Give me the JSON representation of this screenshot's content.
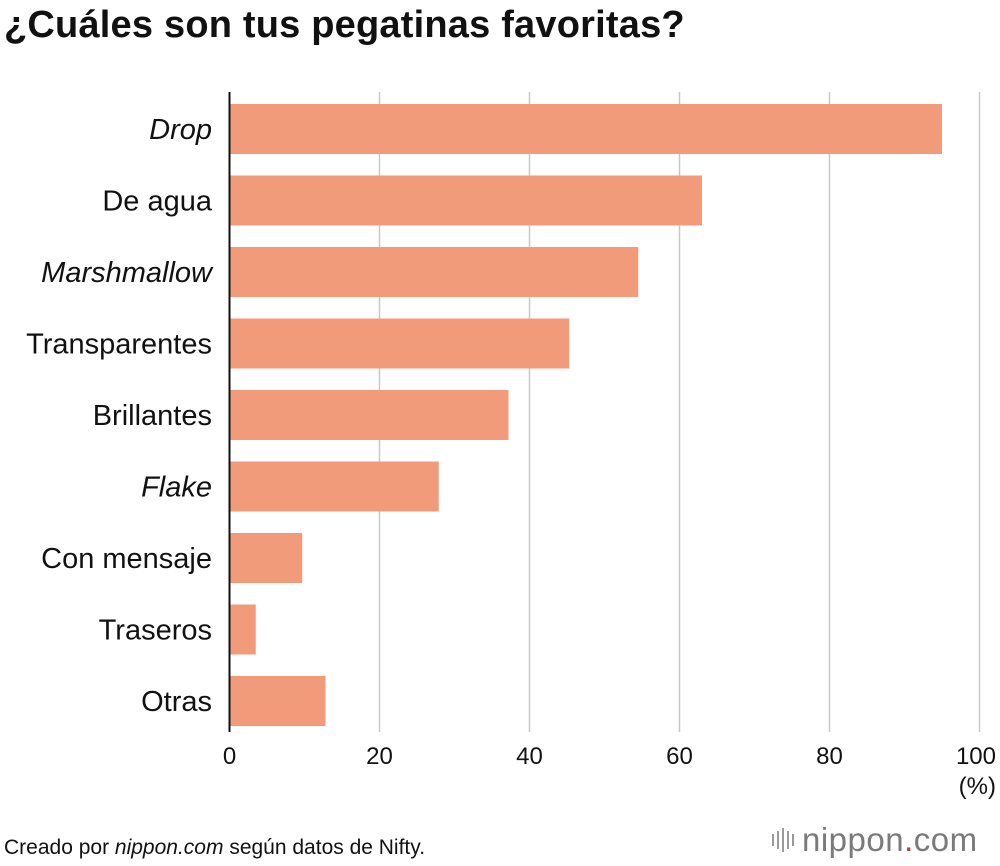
{
  "title": "¿Cuáles son tus pegatinas favoritas?",
  "chart_data": {
    "type": "bar",
    "orientation": "horizontal",
    "categories": [
      "Drop",
      "De agua",
      "Marshmallow",
      "Transparentes",
      "Brillantes",
      "Flake",
      "Con mensaje",
      "Traseros",
      "Otras"
    ],
    "italic_categories": [
      "Drop",
      "Marshmallow",
      "Flake"
    ],
    "values": [
      95,
      63,
      54.5,
      45.3,
      37.2,
      27.9,
      9.7,
      3.5,
      12.8
    ],
    "xlim": [
      0,
      100
    ],
    "xticks": [
      0,
      20,
      40,
      60,
      80,
      100
    ],
    "unit": "(%)",
    "grid": true,
    "bar_color": "#f19b7b",
    "grid_color": "#c8c8c8"
  },
  "footer": {
    "source_prefix": "Creado por ",
    "source_site": "nippon.com",
    "source_suffix": " según datos de Nifty."
  },
  "logo": {
    "name": "nippon",
    "dot": ".",
    "tld": "com",
    "icon": "nippon-bars-icon",
    "accent_color": "#d4302a"
  }
}
